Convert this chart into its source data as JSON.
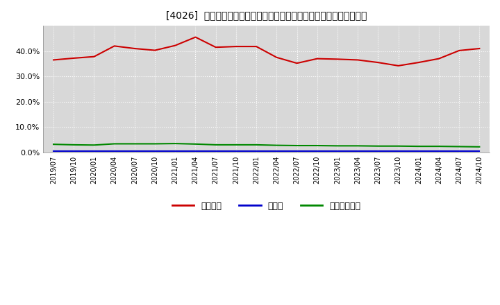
{
  "title": "[4026]  自己資本、のれん、繰延税金資産の総資産に対する比率の推移",
  "x_labels": [
    "2019/07",
    "2019/10",
    "2020/01",
    "2020/04",
    "2020/07",
    "2020/10",
    "2021/01",
    "2021/04",
    "2021/07",
    "2021/10",
    "2022/01",
    "2022/04",
    "2022/07",
    "2022/10",
    "2023/01",
    "2023/04",
    "2023/07",
    "2023/10",
    "2024/01",
    "2024/04",
    "2024/07",
    "2024/10"
  ],
  "equity": [
    36.5,
    37.2,
    37.8,
    42.0,
    41.0,
    40.3,
    42.2,
    45.5,
    41.5,
    41.8,
    41.8,
    37.5,
    35.2,
    37.0,
    36.8,
    36.5,
    35.5,
    34.2,
    35.5,
    37.0,
    40.2,
    41.0
  ],
  "goodwill": [
    0.5,
    0.5,
    0.5,
    0.5,
    0.5,
    0.5,
    0.5,
    0.5,
    0.5,
    0.5,
    0.5,
    0.5,
    0.5,
    0.5,
    0.5,
    0.5,
    0.5,
    0.5,
    0.5,
    0.5,
    0.5,
    0.5
  ],
  "deferred_tax": [
    3.2,
    3.0,
    2.9,
    3.4,
    3.4,
    3.4,
    3.5,
    3.3,
    3.0,
    3.0,
    3.0,
    2.8,
    2.7,
    2.7,
    2.6,
    2.6,
    2.5,
    2.5,
    2.4,
    2.4,
    2.3,
    2.2
  ],
  "equity_color": "#cc0000",
  "goodwill_color": "#0000cc",
  "deferred_tax_color": "#008800",
  "background_color": "#ffffff",
  "plot_bg_color": "#d8d8d8",
  "grid_color": "#ffffff",
  "ylim": [
    0,
    50
  ],
  "yticks": [
    0,
    10,
    20,
    30,
    40
  ],
  "legend_labels": [
    "自己資本",
    "のれん",
    "繰延税金資産"
  ]
}
